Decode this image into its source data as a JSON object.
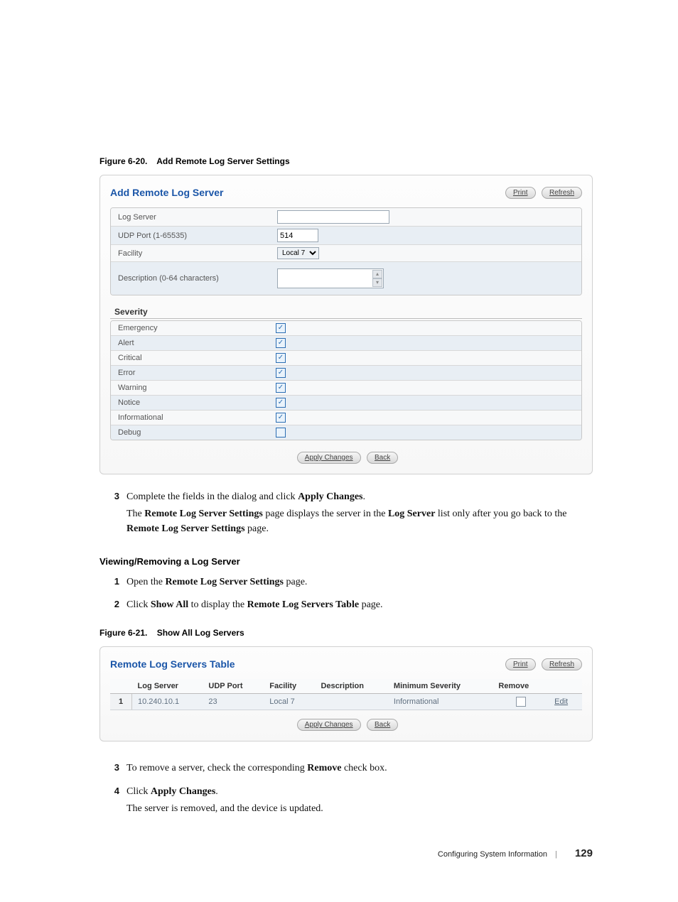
{
  "figure1": {
    "caption_prefix": "Figure 6-20.",
    "caption_title": "Add Remote Log Server Settings",
    "panel_title": "Add Remote Log Server",
    "print": "Print",
    "refresh": "Refresh",
    "fields": {
      "log_server": {
        "label": "Log Server",
        "value": ""
      },
      "udp_port": {
        "label": "UDP Port (1-65535)",
        "value": "514"
      },
      "facility": {
        "label": "Facility",
        "value": "Local 7"
      },
      "description": {
        "label": "Description (0-64 characters)"
      }
    },
    "severity_heading": "Severity",
    "severity": [
      {
        "label": "Emergency",
        "checked": true,
        "alt": false
      },
      {
        "label": "Alert",
        "checked": true,
        "alt": true
      },
      {
        "label": "Critical",
        "checked": true,
        "alt": false
      },
      {
        "label": "Error",
        "checked": true,
        "alt": true
      },
      {
        "label": "Warning",
        "checked": true,
        "alt": false
      },
      {
        "label": "Notice",
        "checked": true,
        "alt": true
      },
      {
        "label": "Informational",
        "checked": true,
        "alt": false
      },
      {
        "label": "Debug",
        "checked": false,
        "alt": true
      }
    ],
    "apply": "Apply Changes",
    "back": "Back"
  },
  "step3a": {
    "num": "3",
    "line1_a": "Complete the fields in the dialog and click ",
    "line1_b": "Apply Changes",
    "line1_c": ".",
    "line2_a": "The ",
    "line2_b": "Remote Log Server Settings",
    "line2_c": " page displays the server in the ",
    "line2_d": "Log Server",
    "line2_e": " list only after you go back to the ",
    "line2_f": "Remote Log Server Settings",
    "line2_g": " page."
  },
  "viewing_heading": "Viewing/Removing a Log Server",
  "view_steps": [
    {
      "num": "1",
      "a": "Open the ",
      "b": "Remote Log Server Settings",
      "c": " page."
    },
    {
      "num": "2",
      "a": "Click ",
      "b": "Show All",
      "c": " to display the ",
      "d": "Remote Log Servers Table",
      "e": " page."
    }
  ],
  "figure2": {
    "caption_prefix": "Figure 6-21.",
    "caption_title": "Show All Log Servers",
    "panel_title": "Remote Log Servers Table",
    "print": "Print",
    "refresh": "Refresh",
    "columns": [
      "Log Server",
      "UDP Port",
      "Facility",
      "Description",
      "Minimum Severity",
      "Remove",
      ""
    ],
    "row": {
      "idx": "1",
      "log_server": "10.240.10.1",
      "udp_port": "23",
      "facility": "Local 7",
      "description": "",
      "min_sev": "Informational",
      "edit": "Edit"
    },
    "apply": "Apply Changes",
    "back": "Back"
  },
  "step3b": {
    "num": "3",
    "a": "To remove a server, check the corresponding ",
    "b": "Remove",
    "c": " check box."
  },
  "step4": {
    "num": "4",
    "a": "Click ",
    "b": "Apply Changes",
    "c": ".",
    "line2": "The server is removed, and the device is updated."
  },
  "footer": {
    "text": "Configuring System Information",
    "page": "129"
  },
  "colors": {
    "title_blue": "#1b56a8",
    "row_alt": "#e8eef4",
    "check_border": "#2b6db3"
  }
}
